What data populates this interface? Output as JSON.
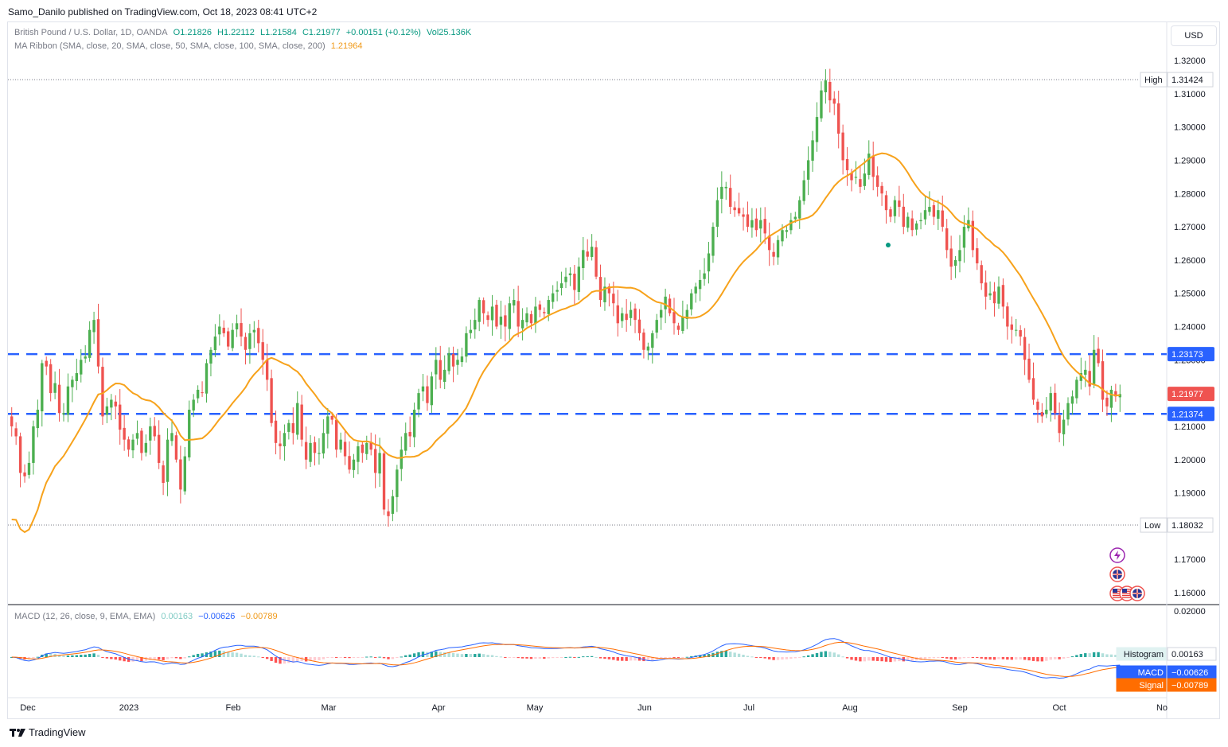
{
  "header": {
    "published": "Samo_Danilo published on TradingView.com, Oct 18, 2023 08:41 UTC+2"
  },
  "legend": {
    "symbol": "British Pound / U.S. Dollar, 1D, OANDA",
    "o": "O1.21826",
    "h": "H1.22112",
    "l": "L1.21584",
    "c": "C1.21977",
    "chg": "+0.00151 (+0.12%)",
    "vol": "Vol25.136K",
    "ma_label": "MA Ribbon (SMA, close, 20, SMA, close, 50, SMA, close, 100, SMA, close, 200)",
    "ma_value": "1.21964",
    "macd_label": "MACD (12, 26, close, 9, EMA, EMA)",
    "macd_hist": "0.00163",
    "macd_macd": "−0.00626",
    "macd_signal": "−0.00789"
  },
  "toolbar": {
    "currency": "USD"
  },
  "footer": {
    "brand": "TradingView"
  },
  "colors": {
    "up": "#4caf50",
    "down": "#ef5350",
    "ma": "#f7a21b",
    "level": "#2962ff",
    "macd": "#2962ff",
    "signal": "#ff6d00",
    "hist_up_strong": "#26a69a",
    "hist_up_weak": "#b2dfdb",
    "hist_down_strong": "#ff5252",
    "hist_down_weak": "#ffcdd2"
  },
  "chart_data": [
    {
      "type": "candlestick",
      "title": "British Pound / U.S. Dollar, 1D, OANDA",
      "x": [
        "Dec",
        "2023",
        "Feb",
        "Mar",
        "Apr",
        "May",
        "Jun",
        "Jul",
        "Aug",
        "Sep",
        "Oct",
        "No"
      ],
      "ylim": [
        1.155,
        1.323
      ],
      "y_ticks": [
        "1.32000",
        "1.31000",
        "1.30000",
        "1.29000",
        "1.28000",
        "1.27000",
        "1.26000",
        "1.25000",
        "1.24000",
        "1.23000",
        "1.22000",
        "1.21000",
        "1.20000",
        "1.19000",
        "1.18000",
        "1.17000",
        "1.16000"
      ],
      "closes": [
        1.21,
        1.207,
        1.196,
        1.195,
        1.199,
        1.21,
        1.215,
        1.229,
        1.228,
        1.22,
        1.223,
        1.214,
        1.214,
        1.222,
        1.224,
        1.226,
        1.23,
        1.231,
        1.239,
        1.242,
        1.228,
        1.213,
        1.216,
        1.218,
        1.216,
        1.209,
        1.206,
        1.203,
        1.206,
        1.208,
        1.202,
        1.205,
        1.21,
        1.207,
        1.199,
        1.193,
        1.206,
        1.208,
        1.2,
        1.191,
        1.201,
        1.215,
        1.218,
        1.221,
        1.22,
        1.229,
        1.233,
        1.237,
        1.24,
        1.238,
        1.234,
        1.239,
        1.241,
        1.237,
        1.233,
        1.238,
        1.239,
        1.235,
        1.23,
        1.224,
        1.211,
        1.205,
        1.204,
        1.208,
        1.211,
        1.208,
        1.217,
        1.206,
        1.2,
        1.205,
        1.202,
        1.202,
        1.208,
        1.213,
        1.212,
        1.203,
        1.206,
        1.201,
        1.197,
        1.2,
        1.204,
        1.202,
        1.205,
        1.203,
        1.196,
        1.202,
        1.185,
        1.183,
        1.189,
        1.197,
        1.203,
        1.208,
        1.207,
        1.215,
        1.22,
        1.222,
        1.217,
        1.225,
        1.23,
        1.224,
        1.227,
        1.232,
        1.228,
        1.23,
        1.231,
        1.238,
        1.239,
        1.242,
        1.248,
        1.244,
        1.242,
        1.246,
        1.24,
        1.243,
        1.24,
        1.247,
        1.248,
        1.24,
        1.242,
        1.244,
        1.241,
        1.246,
        1.245,
        1.244,
        1.248,
        1.25,
        1.251,
        1.253,
        1.255,
        1.256,
        1.251,
        1.258,
        1.263,
        1.261,
        1.264,
        1.255,
        1.248,
        1.252,
        1.25,
        1.247,
        1.241,
        1.244,
        1.242,
        1.245,
        1.242,
        1.238,
        1.233,
        1.234,
        1.238,
        1.242,
        1.245,
        1.249,
        1.244,
        1.241,
        1.239,
        1.243,
        1.245,
        1.25,
        1.252,
        1.254,
        1.256,
        1.262,
        1.27,
        1.278,
        1.282,
        1.282,
        1.276,
        1.275,
        1.274,
        1.273,
        1.27,
        1.272,
        1.269,
        1.272,
        1.268,
        1.263,
        1.261,
        1.266,
        1.269,
        1.269,
        1.272,
        1.273,
        1.278,
        1.284,
        1.29,
        1.296,
        1.303,
        1.311,
        1.314,
        1.308,
        1.307,
        1.298,
        1.29,
        1.287,
        1.284,
        1.285,
        1.282,
        1.286,
        1.292,
        1.285,
        1.282,
        1.28,
        1.275,
        1.273,
        1.278,
        1.276,
        1.27,
        1.273,
        1.269,
        1.271,
        1.272,
        1.275,
        1.276,
        1.273,
        1.275,
        1.27,
        1.263,
        1.258,
        1.26,
        1.263,
        1.27,
        1.272,
        1.263,
        1.259,
        1.253,
        1.249,
        1.25,
        1.247,
        1.252,
        1.246,
        1.24,
        1.239,
        1.239,
        1.237,
        1.23,
        1.224,
        1.218,
        1.215,
        1.213,
        1.215,
        1.22,
        1.214,
        1.208,
        1.212,
        1.217,
        1.219,
        1.224,
        1.226,
        1.227,
        1.222,
        1.233,
        1.229,
        1.218,
        1.216,
        1.221,
        1.219,
        1.2197
      ],
      "ma": 1.21964,
      "high": 1.31424,
      "low": 1.18032,
      "levels": [
        1.23173,
        1.21374
      ],
      "last": 1.21977,
      "labels": {
        "high": "High",
        "low": "Low",
        "high_value": "1.31424",
        "low_value": "1.18032",
        "level1": "1.23173",
        "level2": "1.21374",
        "last": "1.21977"
      }
    },
    {
      "type": "macd",
      "title": "MACD (12, 26, close, 9, EMA, EMA)",
      "y_ticks": [
        "0.02000"
      ],
      "last_histogram": 0.00163,
      "last_macd": -0.00626,
      "last_signal": -0.00789,
      "labels": {
        "histogram": "Histogram",
        "macd": "MACD",
        "signal": "Signal",
        "histogram_value": "0.00163",
        "macd_value": "−0.00626",
        "signal_value": "−0.00789"
      }
    }
  ]
}
